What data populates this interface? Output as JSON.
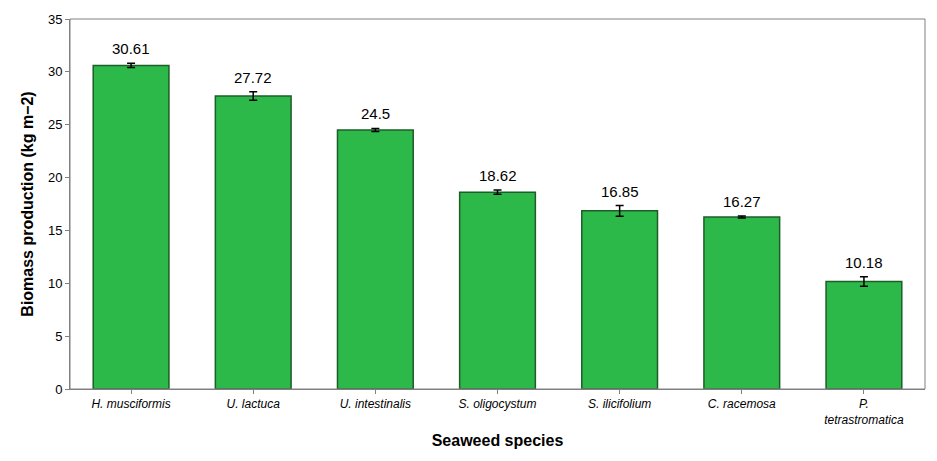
{
  "chart_data": {
    "type": "bar",
    "x_label": "Seaweed species",
    "y_label": "Biomass production (kg m−2)",
    "categories": [
      "H. musciformis",
      "U. lactuca",
      "U. intestinalis",
      "S. oligocystum",
      "S. ilicifolium",
      "C. racemosa",
      "P. tetrastromatica"
    ],
    "values": [
      30.61,
      27.72,
      24.5,
      18.62,
      16.85,
      16.27,
      10.18
    ],
    "errors": [
      0.2,
      0.4,
      0.15,
      0.2,
      0.5,
      0.1,
      0.45
    ],
    "color": "#2db84a",
    "ylim": [
      0,
      35
    ],
    "yticks": [
      0,
      5,
      10,
      15,
      20,
      25,
      30,
      35
    ],
    "grid": false,
    "data_labels": true
  }
}
